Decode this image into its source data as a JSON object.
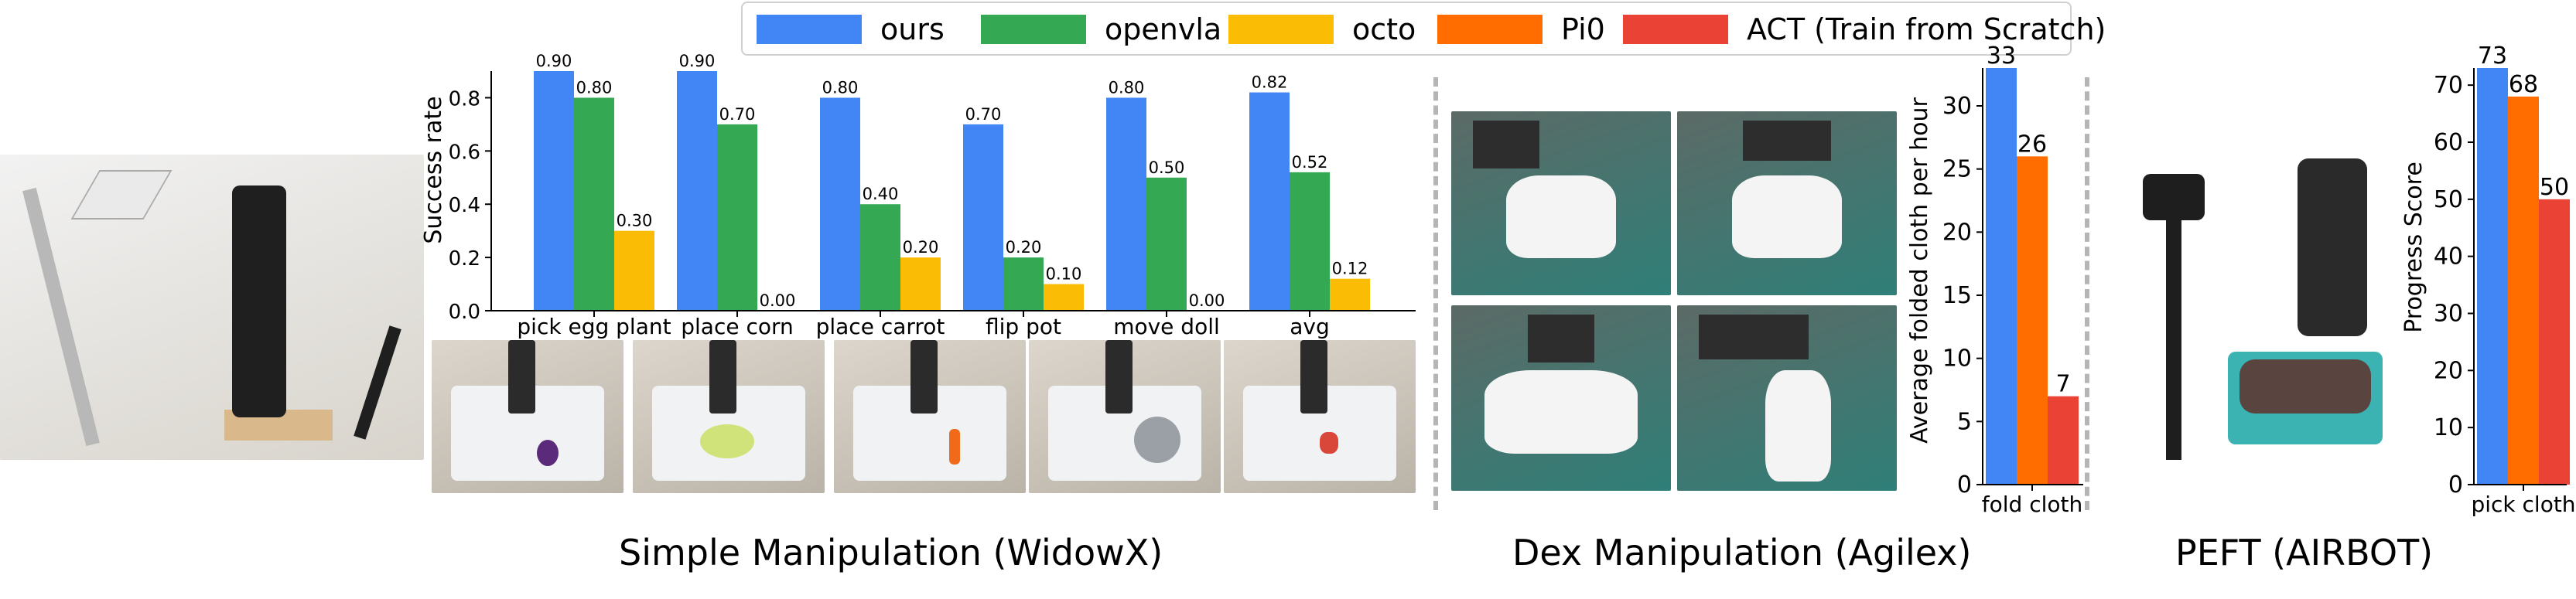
{
  "legend": [
    {
      "label": "ours",
      "color": "#4285f4"
    },
    {
      "label": "openvla",
      "color": "#34a853"
    },
    {
      "label": "octo",
      "color": "#fbbc05"
    },
    {
      "label": "Pi0",
      "color": "#ff6d01"
    },
    {
      "label": "ACT (Train from Scratch)",
      "color": "#ea4335"
    }
  ],
  "sections": {
    "simple": "Simple Manipulation (WidowX)",
    "dex": "Dex Manipulation (Agilex)",
    "peft": "PEFT (AIRBOT)"
  },
  "chart_data": [
    {
      "type": "bar",
      "ylabel": "Success rate",
      "ylim": [
        0,
        0.9
      ],
      "yticks": [
        "0.0",
        "0.2",
        "0.4",
        "0.6",
        "0.8"
      ],
      "categories": [
        "pick egg plant",
        "place corn",
        "place carrot",
        "flip pot",
        "move doll",
        "avg"
      ],
      "series": [
        {
          "name": "ours",
          "color": "#4285f4",
          "values": [
            0.9,
            0.9,
            0.8,
            0.7,
            0.8,
            0.82
          ],
          "labels": [
            "0.90",
            "0.90",
            "0.80",
            "0.70",
            "0.80",
            "0.82"
          ]
        },
        {
          "name": "openvla",
          "color": "#34a853",
          "values": [
            0.8,
            0.7,
            0.4,
            0.2,
            0.5,
            0.52
          ],
          "labels": [
            "0.80",
            "0.70",
            "0.40",
            "0.20",
            "0.50",
            "0.52"
          ]
        },
        {
          "name": "octo",
          "color": "#fbbc05",
          "values": [
            0.3,
            0.0,
            0.2,
            0.1,
            0.0,
            0.12
          ],
          "labels": [
            "0.30",
            "0.00",
            "0.20",
            "0.10",
            "0.00",
            "0.12"
          ]
        }
      ]
    },
    {
      "type": "bar",
      "ylabel": "Average folded cloth per hour",
      "ylim": [
        0,
        33
      ],
      "yticks": [
        "0",
        "5",
        "10",
        "15",
        "20",
        "25",
        "30"
      ],
      "categories": [
        "fold cloth"
      ],
      "series": [
        {
          "name": "ours",
          "color": "#4285f4",
          "values": [
            33
          ],
          "labels": [
            "33"
          ]
        },
        {
          "name": "Pi0",
          "color": "#ff6d01",
          "values": [
            26
          ],
          "labels": [
            "26"
          ]
        },
        {
          "name": "ACT (Train from Scratch)",
          "color": "#ea4335",
          "values": [
            7
          ],
          "labels": [
            "7"
          ]
        }
      ]
    },
    {
      "type": "bar",
      "ylabel": "Progress Score",
      "ylim": [
        0,
        73
      ],
      "yticks": [
        "0",
        "10",
        "20",
        "30",
        "40",
        "50",
        "60",
        "70"
      ],
      "categories": [
        "pick cloth"
      ],
      "series": [
        {
          "name": "ours",
          "color": "#4285f4",
          "values": [
            73
          ],
          "labels": [
            "73"
          ]
        },
        {
          "name": "Pi0",
          "color": "#ff6d01",
          "values": [
            68
          ],
          "labels": [
            "68"
          ]
        },
        {
          "name": "ACT (Train from Scratch)",
          "color": "#ea4335",
          "values": [
            50
          ],
          "labels": [
            "50"
          ]
        }
      ]
    }
  ]
}
